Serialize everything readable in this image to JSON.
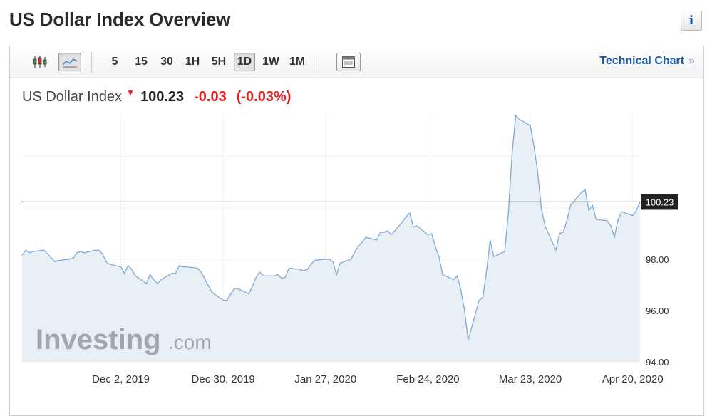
{
  "page": {
    "title": "US Dollar Index Overview"
  },
  "toolbar": {
    "timeframes": [
      "5",
      "15",
      "30",
      "1H",
      "5H",
      "1D",
      "1W",
      "1M"
    ],
    "active_timeframe": "1D",
    "technical_chart_label": "Technical Chart",
    "technical_chart_chevron": "»"
  },
  "quote": {
    "name": "US Dollar Index",
    "last": "100.23",
    "change": "-0.03",
    "change_pct": "(-0.03%)",
    "direction_icon": "down-arrow-icon"
  },
  "colors": {
    "down": "#e52222",
    "line": "#7fa9d4",
    "fill": "#e8f0f6",
    "link": "#1a5aa8"
  },
  "chart_data": {
    "type": "area",
    "title": "",
    "xlabel": "",
    "ylabel": "",
    "ylim": [
      94,
      103.6
    ],
    "y_ticks": [
      "94.00",
      "96.00",
      "98.00"
    ],
    "x_tick_labels": [
      "Dec 2, 2019",
      "Dec 30, 2019",
      "Jan 27, 2020",
      "Feb 24, 2020",
      "Mar 23, 2020",
      "Apr 20, 2020"
    ],
    "x_tick_dates": [
      "2019-12-02",
      "2019-12-30",
      "2020-01-27",
      "2020-02-24",
      "2020-03-23",
      "2020-04-20"
    ],
    "current_value": 100.23,
    "current_label": "100.23",
    "grid": true,
    "watermark": "Investing.com",
    "series": [
      {
        "values": [
          {
            "x": "2019-11-05",
            "y": 98.15
          },
          {
            "x": "2019-11-06",
            "y": 98.35
          },
          {
            "x": "2019-11-07",
            "y": 98.25
          },
          {
            "x": "2019-11-08",
            "y": 98.3
          },
          {
            "x": "2019-11-11",
            "y": 98.35
          },
          {
            "x": "2019-11-12",
            "y": 98.2
          },
          {
            "x": "2019-11-13",
            "y": 98.05
          },
          {
            "x": "2019-11-14",
            "y": 97.9
          },
          {
            "x": "2019-11-15",
            "y": 97.95
          },
          {
            "x": "2019-11-18",
            "y": 98.0
          },
          {
            "x": "2019-11-19",
            "y": 98.05
          },
          {
            "x": "2019-11-20",
            "y": 98.25
          },
          {
            "x": "2019-11-21",
            "y": 98.3
          },
          {
            "x": "2019-11-22",
            "y": 98.25
          },
          {
            "x": "2019-11-25",
            "y": 98.35
          },
          {
            "x": "2019-11-26",
            "y": 98.35
          },
          {
            "x": "2019-11-27",
            "y": 98.2
          },
          {
            "x": "2019-11-28",
            "y": 97.9
          },
          {
            "x": "2019-11-29",
            "y": 97.8
          },
          {
            "x": "2019-12-02",
            "y": 97.7
          },
          {
            "x": "2019-12-03",
            "y": 97.45
          },
          {
            "x": "2019-12-04",
            "y": 97.75
          },
          {
            "x": "2019-12-05",
            "y": 97.6
          },
          {
            "x": "2019-12-06",
            "y": 97.35
          },
          {
            "x": "2019-12-09",
            "y": 97.05
          },
          {
            "x": "2019-12-10",
            "y": 97.4
          },
          {
            "x": "2019-12-11",
            "y": 97.2
          },
          {
            "x": "2019-12-12",
            "y": 97.05
          },
          {
            "x": "2019-12-13",
            "y": 97.2
          },
          {
            "x": "2019-12-16",
            "y": 97.45
          },
          {
            "x": "2019-12-17",
            "y": 97.45
          },
          {
            "x": "2019-12-18",
            "y": 97.75
          },
          {
            "x": "2019-12-19",
            "y": 97.7
          },
          {
            "x": "2019-12-20",
            "y": 97.7
          },
          {
            "x": "2019-12-23",
            "y": 97.65
          },
          {
            "x": "2019-12-24",
            "y": 97.5
          },
          {
            "x": "2019-12-26",
            "y": 96.95
          },
          {
            "x": "2019-12-27",
            "y": 96.7
          },
          {
            "x": "2019-12-30",
            "y": 96.4
          },
          {
            "x": "2019-12-31",
            "y": 96.4
          },
          {
            "x": "2020-01-02",
            "y": 96.85
          },
          {
            "x": "2020-01-03",
            "y": 96.85
          },
          {
            "x": "2020-01-06",
            "y": 96.65
          },
          {
            "x": "2020-01-07",
            "y": 96.95
          },
          {
            "x": "2020-01-08",
            "y": 97.3
          },
          {
            "x": "2020-01-09",
            "y": 97.5
          },
          {
            "x": "2020-01-10",
            "y": 97.35
          },
          {
            "x": "2020-01-13",
            "y": 97.35
          },
          {
            "x": "2020-01-14",
            "y": 97.4
          },
          {
            "x": "2020-01-15",
            "y": 97.25
          },
          {
            "x": "2020-01-16",
            "y": 97.3
          },
          {
            "x": "2020-01-17",
            "y": 97.65
          },
          {
            "x": "2020-01-20",
            "y": 97.6
          },
          {
            "x": "2020-01-21",
            "y": 97.55
          },
          {
            "x": "2020-01-22",
            "y": 97.6
          },
          {
            "x": "2020-01-23",
            "y": 97.8
          },
          {
            "x": "2020-01-24",
            "y": 97.95
          },
          {
            "x": "2020-01-27",
            "y": 98.0
          },
          {
            "x": "2020-01-28",
            "y": 98.0
          },
          {
            "x": "2020-01-29",
            "y": 97.9
          },
          {
            "x": "2020-01-30",
            "y": 97.4
          },
          {
            "x": "2020-01-31",
            "y": 97.85
          },
          {
            "x": "2020-02-03",
            "y": 98.0
          },
          {
            "x": "2020-02-04",
            "y": 98.3
          },
          {
            "x": "2020-02-05",
            "y": 98.5
          },
          {
            "x": "2020-02-06",
            "y": 98.65
          },
          {
            "x": "2020-02-07",
            "y": 98.85
          },
          {
            "x": "2020-02-10",
            "y": 98.75
          },
          {
            "x": "2020-02-11",
            "y": 99.05
          },
          {
            "x": "2020-02-12",
            "y": 99.05
          },
          {
            "x": "2020-02-13",
            "y": 99.1
          },
          {
            "x": "2020-02-14",
            "y": 98.95
          },
          {
            "x": "2020-02-17",
            "y": 99.45
          },
          {
            "x": "2020-02-18",
            "y": 99.65
          },
          {
            "x": "2020-02-19",
            "y": 99.8
          },
          {
            "x": "2020-02-20",
            "y": 99.25
          },
          {
            "x": "2020-02-21",
            "y": 99.3
          },
          {
            "x": "2020-02-24",
            "y": 98.95
          },
          {
            "x": "2020-02-25",
            "y": 99.0
          },
          {
            "x": "2020-02-26",
            "y": 98.5
          },
          {
            "x": "2020-02-27",
            "y": 98.1
          },
          {
            "x": "2020-02-28",
            "y": 97.4
          },
          {
            "x": "2020-03-02",
            "y": 97.2
          },
          {
            "x": "2020-03-03",
            "y": 97.35
          },
          {
            "x": "2020-03-04",
            "y": 96.8
          },
          {
            "x": "2020-03-05",
            "y": 96.0
          },
          {
            "x": "2020-03-06",
            "y": 94.85
          },
          {
            "x": "2020-03-09",
            "y": 96.4
          },
          {
            "x": "2020-03-10",
            "y": 96.5
          },
          {
            "x": "2020-03-11",
            "y": 97.5
          },
          {
            "x": "2020-03-12",
            "y": 98.75
          },
          {
            "x": "2020-03-13",
            "y": 98.1
          },
          {
            "x": "2020-03-16",
            "y": 98.3
          },
          {
            "x": "2020-03-17",
            "y": 99.8
          },
          {
            "x": "2020-03-18",
            "y": 102.1
          },
          {
            "x": "2020-03-19",
            "y": 103.6
          },
          {
            "x": "2020-03-20",
            "y": 103.45
          },
          {
            "x": "2020-03-23",
            "y": 103.2
          },
          {
            "x": "2020-03-24",
            "y": 102.4
          },
          {
            "x": "2020-03-25",
            "y": 101.4
          },
          {
            "x": "2020-03-26",
            "y": 100.0
          },
          {
            "x": "2020-03-27",
            "y": 99.3
          },
          {
            "x": "2020-03-30",
            "y": 98.35
          },
          {
            "x": "2020-03-31",
            "y": 99.0
          },
          {
            "x": "2020-04-01",
            "y": 99.05
          },
          {
            "x": "2020-04-02",
            "y": 99.5
          },
          {
            "x": "2020-04-03",
            "y": 100.1
          },
          {
            "x": "2020-04-06",
            "y": 100.6
          },
          {
            "x": "2020-04-07",
            "y": 100.7
          },
          {
            "x": "2020-04-08",
            "y": 99.9
          },
          {
            "x": "2020-04-09",
            "y": 100.1
          },
          {
            "x": "2020-04-10",
            "y": 99.55
          },
          {
            "x": "2020-04-13",
            "y": 99.5
          },
          {
            "x": "2020-04-14",
            "y": 99.3
          },
          {
            "x": "2020-04-15",
            "y": 98.85
          },
          {
            "x": "2020-04-16",
            "y": 99.55
          },
          {
            "x": "2020-04-17",
            "y": 99.85
          },
          {
            "x": "2020-04-20",
            "y": 99.7
          },
          {
            "x": "2020-04-21",
            "y": 99.9
          },
          {
            "x": "2020-04-22",
            "y": 100.23
          }
        ]
      }
    ]
  }
}
